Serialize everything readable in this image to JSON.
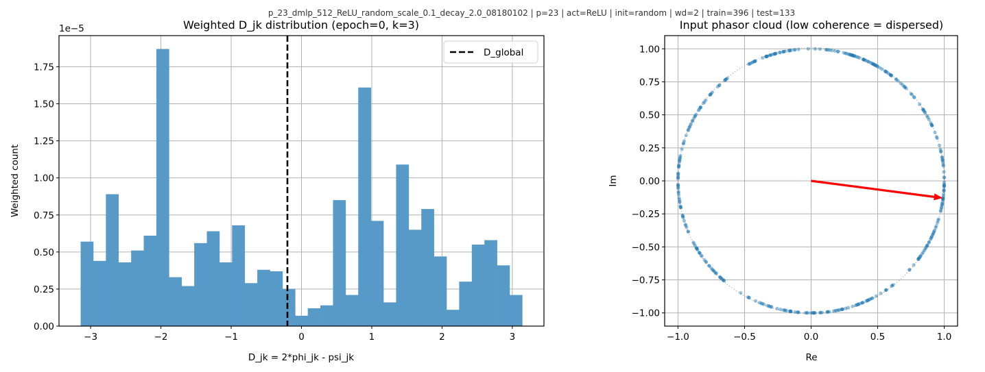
{
  "suptitle": "p_23_dmlp_512_ReLU_random_scale_0.1_decay_2.0_08180102 | p=23 | act=ReLU | init=random | wd=2 | train=396 | test=133",
  "colors": {
    "bar": "#5799c7",
    "scatter": "#1f77b4",
    "arrow": "#ff0000",
    "dline": "#000000"
  },
  "chart_data": [
    {
      "type": "bar",
      "title": "Weighted D_jk distribution (epoch=0, k=3)",
      "xlabel": "D_jk = 2*phi_jk - psi_jk",
      "ylabel": "Weighted count",
      "y_offset_text": "1e−5",
      "xlim": [
        -3.45,
        3.45
      ],
      "ylim": [
        0,
        1.96
      ],
      "xticks": [
        -3,
        -2,
        -1,
        0,
        1,
        2,
        3
      ],
      "xtick_labels": [
        "−3",
        "−2",
        "−1",
        "0",
        "1",
        "2",
        "3"
      ],
      "yticks": [
        0,
        0.25,
        0.5,
        0.75,
        1.0,
        1.25,
        1.5,
        1.75
      ],
      "ytick_labels": [
        "0.00",
        "0.25",
        "0.50",
        "0.75",
        "1.00",
        "1.25",
        "1.50",
        "1.75"
      ],
      "grid": true,
      "bin_range": [
        -3.14159,
        3.14159
      ],
      "bins": 35,
      "values": [
        0.57,
        0.44,
        0.89,
        0.43,
        0.51,
        0.61,
        1.87,
        0.33,
        0.27,
        0.56,
        0.64,
        0.43,
        0.68,
        0.29,
        0.38,
        0.37,
        0.25,
        0.07,
        0.12,
        0.14,
        0.85,
        0.21,
        1.61,
        0.71,
        0.16,
        1.09,
        0.65,
        0.79,
        0.47,
        0.11,
        0.3,
        0.55,
        0.58,
        0.41,
        0.21
      ],
      "vline": {
        "x": -0.2,
        "label": "D_global",
        "style": "dashed"
      },
      "legend": {
        "position": "upper right",
        "entries": [
          "D_global"
        ]
      }
    },
    {
      "type": "scatter",
      "title": "Input phasor cloud (low coherence = dispersed)",
      "xlabel": "Re",
      "ylabel": "Im",
      "xlim": [
        -1.1,
        1.1
      ],
      "ylim": [
        -1.1,
        1.1
      ],
      "xticks": [
        -1.0,
        -0.5,
        0.0,
        0.5,
        1.0
      ],
      "xtick_labels": [
        "−1.0",
        "−0.5",
        "0.0",
        "0.5",
        "1.0"
      ],
      "yticks": [
        1.0,
        0.75,
        0.5,
        0.25,
        0.0,
        -0.25,
        -0.5,
        -0.75,
        -1.0
      ],
      "ytick_labels": [
        "1.00",
        "0.75",
        "0.50",
        "0.25",
        "0.00",
        "−0.25",
        "−0.50",
        "−0.75",
        "−1.00"
      ],
      "grid": true,
      "points_description": "Points lie on the unit circle, dispersed around all angles with a few gaps",
      "point_angle_gaps_deg": [
        [
          118,
          128
        ],
        [
          -52,
          -43
        ],
        [
          -128,
          -122
        ]
      ],
      "n_points_approx": 396,
      "mean_vector": {
        "x0": 0,
        "y0": 0,
        "x1": 0.99,
        "y1": -0.13
      },
      "unit_circle": "dotted"
    }
  ]
}
